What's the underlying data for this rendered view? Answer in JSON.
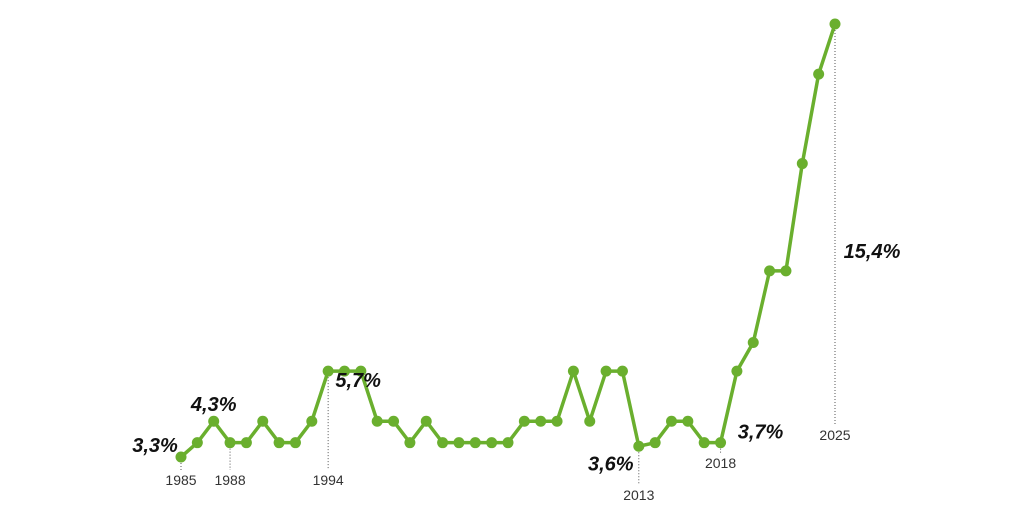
{
  "chart_data": {
    "type": "line",
    "x": [
      1985,
      1986,
      1987,
      1988,
      1989,
      1990,
      1991,
      1992,
      1993,
      1994,
      1995,
      1996,
      1997,
      1998,
      1999,
      2000,
      2001,
      2002,
      2003,
      2004,
      2005,
      2006,
      2007,
      2008,
      2009,
      2010,
      2011,
      2012,
      2013,
      2014,
      2015,
      2016,
      2017,
      2018,
      2019,
      2020,
      2021,
      2022,
      2023,
      2024,
      2025
    ],
    "series": [
      {
        "color": "#6aaf2e",
        "values": [
          3.3,
          3.7,
          4.3,
          3.7,
          3.7,
          4.3,
          3.7,
          3.7,
          4.3,
          5.7,
          5.7,
          5.7,
          4.3,
          4.3,
          3.7,
          4.3,
          3.7,
          3.7,
          3.7,
          3.7,
          3.7,
          4.3,
          4.3,
          4.3,
          5.7,
          4.3,
          5.7,
          5.7,
          3.6,
          3.7,
          4.3,
          4.3,
          3.7,
          3.7,
          5.7,
          6.5,
          8.5,
          8.5,
          11.5,
          14,
          15.4
        ],
        "value_labels": [
          "3,3%",
          null,
          "4,3%",
          null,
          null,
          null,
          null,
          null,
          null,
          "5,7%",
          null,
          null,
          null,
          null,
          null,
          null,
          null,
          null,
          null,
          null,
          null,
          null,
          null,
          null,
          null,
          null,
          null,
          null,
          "3,6%",
          null,
          null,
          null,
          null,
          "3,7%",
          null,
          null,
          null,
          null,
          null,
          null,
          "15,4%"
        ]
      }
    ],
    "xlim": [
      1985,
      2025
    ],
    "xticks": [
      1985,
      1988,
      1994,
      2013,
      2018,
      2025
    ],
    "ylim": [
      3.3,
      15.4
    ]
  }
}
